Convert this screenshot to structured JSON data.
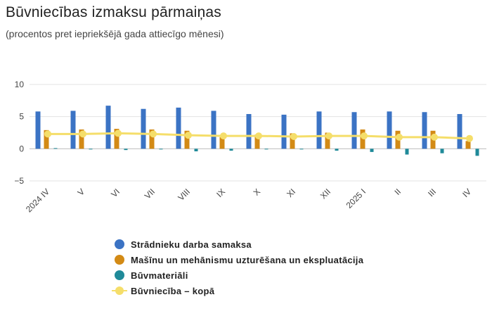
{
  "chart_data": {
    "type": "bar",
    "title": "Būvniecības izmaksu pārmaiņas",
    "subtitle": "(procentos pret iepriekšējā gada attiecīgo mēnesi)",
    "categories": [
      "2024 IV",
      "V",
      "VI",
      "VII",
      "VIII",
      "IX",
      "X",
      "XI",
      "XII",
      "2025 I",
      "II",
      "III",
      "IV"
    ],
    "yticks": [
      "10",
      "5",
      "0",
      "−5"
    ],
    "ylim": [
      -5,
      10
    ],
    "series": [
      {
        "name": "Strādnieku darba samaksa",
        "type": "bar",
        "color": "#3b73c4",
        "values": [
          5.8,
          5.9,
          6.7,
          6.2,
          6.4,
          5.9,
          5.4,
          5.3,
          5.8,
          5.7,
          5.8,
          5.7,
          5.4
        ]
      },
      {
        "name": "Mašīnu un mehānismu uzturēšana un ekspluatācija",
        "type": "bar",
        "color": "#d38a15",
        "values": [
          2.9,
          3.0,
          3.1,
          3.0,
          2.8,
          1.8,
          2.2,
          2.4,
          2.5,
          3.0,
          2.8,
          2.8,
          1.2
        ]
      },
      {
        "name": "Būvmateriāli",
        "type": "bar",
        "color": "#1f8a99",
        "values": [
          0.1,
          0.0,
          -0.2,
          0.0,
          -0.4,
          -0.3,
          0.0,
          0.0,
          -0.3,
          -0.5,
          -0.9,
          -0.7,
          -1.1
        ]
      },
      {
        "name": "Būvniecība – kopā",
        "type": "line",
        "color": "#f5de6a",
        "values": [
          2.3,
          2.3,
          2.4,
          2.3,
          2.1,
          2.0,
          2.0,
          1.9,
          2.0,
          2.0,
          1.8,
          1.8,
          1.6
        ]
      }
    ],
    "legend_position": "bottom-left",
    "grid": true
  }
}
